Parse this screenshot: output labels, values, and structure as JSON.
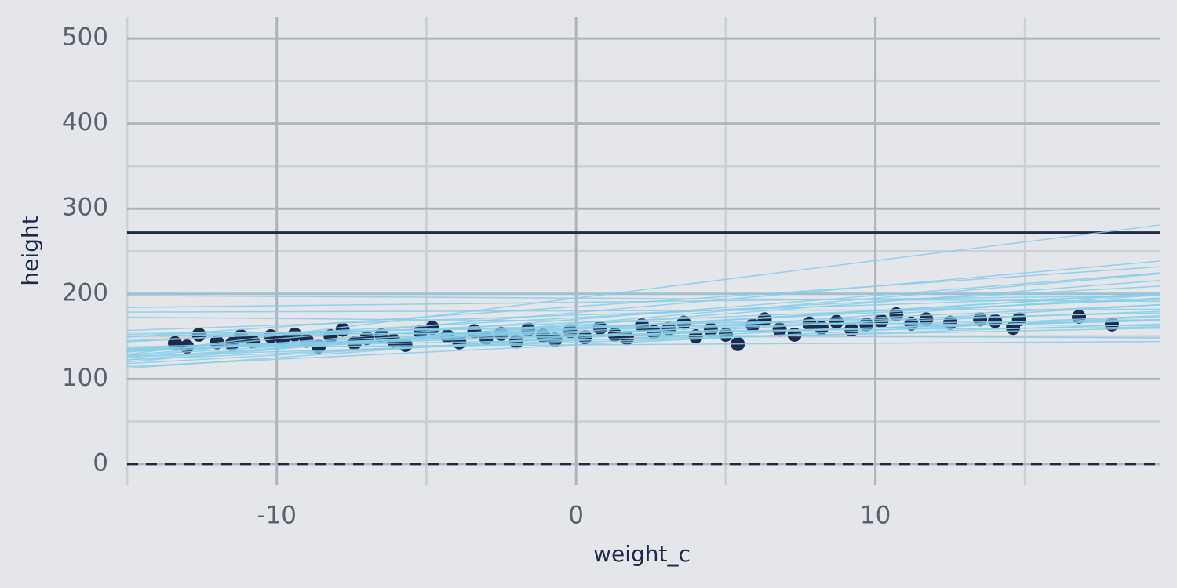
{
  "chart_data": {
    "type": "scatter",
    "x_label": "weight_c",
    "y_label": "height",
    "xlim": [
      -15,
      19.5
    ],
    "ylim": [
      -25,
      525
    ],
    "xticks": [
      -10,
      0,
      10
    ],
    "yticks": [
      0,
      100,
      200,
      300,
      400,
      500
    ],
    "x_minor_ticks": [
      -15,
      -5,
      5,
      15
    ],
    "y_minor_ticks": [
      50,
      150,
      250,
      350,
      450
    ],
    "grid": true,
    "points": {
      "color": "#1e2a4a",
      "x": [
        -13.4,
        -13,
        -12.6,
        -12,
        -11.5,
        -11.2,
        -10.8,
        -10.2,
        -9.8,
        -9.4,
        -9,
        -8.6,
        -8.2,
        -7.8,
        -7.4,
        -7,
        -6.5,
        -6.1,
        -5.7,
        -5.2,
        -4.8,
        -4.3,
        -3.9,
        -3.4,
        -3,
        -2.5,
        -2,
        -1.6,
        -1.1,
        -0.7,
        -0.2,
        0.3,
        0.8,
        1.3,
        1.7,
        2.2,
        2.6,
        3.1,
        3.6,
        4,
        4.5,
        5,
        5.4,
        5.9,
        6.3,
        6.8,
        7.3,
        7.8,
        8.2,
        8.7,
        9.2,
        9.7,
        10.2,
        10.7,
        11.2,
        11.7,
        12.5,
        13.5,
        14,
        14.6,
        14.8,
        16.8,
        17.9
      ],
      "y": [
        142,
        138,
        152,
        143,
        141,
        150,
        144,
        150,
        147,
        152,
        145,
        138,
        150,
        158,
        142,
        148,
        151,
        145,
        140,
        155,
        160,
        150,
        143,
        156,
        148,
        153,
        144,
        158,
        151,
        146,
        156,
        149,
        160,
        152,
        148,
        163,
        155,
        159,
        166,
        150,
        158,
        152,
        141,
        163,
        170,
        158,
        152,
        165,
        160,
        167,
        158,
        164,
        168,
        176,
        165,
        170,
        166,
        170,
        168,
        160,
        170,
        173,
        164
      ]
    },
    "lines": {
      "color": "#87ceeb",
      "intercept": [
        150,
        160,
        155,
        170,
        145,
        190,
        165,
        140,
        158,
        152,
        175,
        148,
        162,
        185,
        143,
        168,
        156,
        180,
        150,
        160,
        172,
        146,
        195,
        163,
        154,
        140,
        178,
        151,
        166,
        159,
        195,
        200
      ],
      "slope": [
        1.0,
        1.8,
        0.3,
        2.8,
        1.5,
        0.4,
        3.0,
        0.2,
        2.2,
        -0.2,
        1.2,
        2.0,
        0.8,
        2.4,
        1.1,
        -0.3,
        1.6,
        0.1,
        2.5,
        0.5,
        1.9,
        0.7,
        -0.2,
        2.7,
        1.3,
        1.7,
        3.1,
        0.9,
        1.4,
        2.1,
        4.4,
        0.0
      ]
    },
    "reference_lines": [
      {
        "value": 272,
        "style": "solid",
        "color": "#1e2a4a"
      },
      {
        "value": 0,
        "style": "dashed",
        "color": "#1e2a4a"
      }
    ]
  }
}
